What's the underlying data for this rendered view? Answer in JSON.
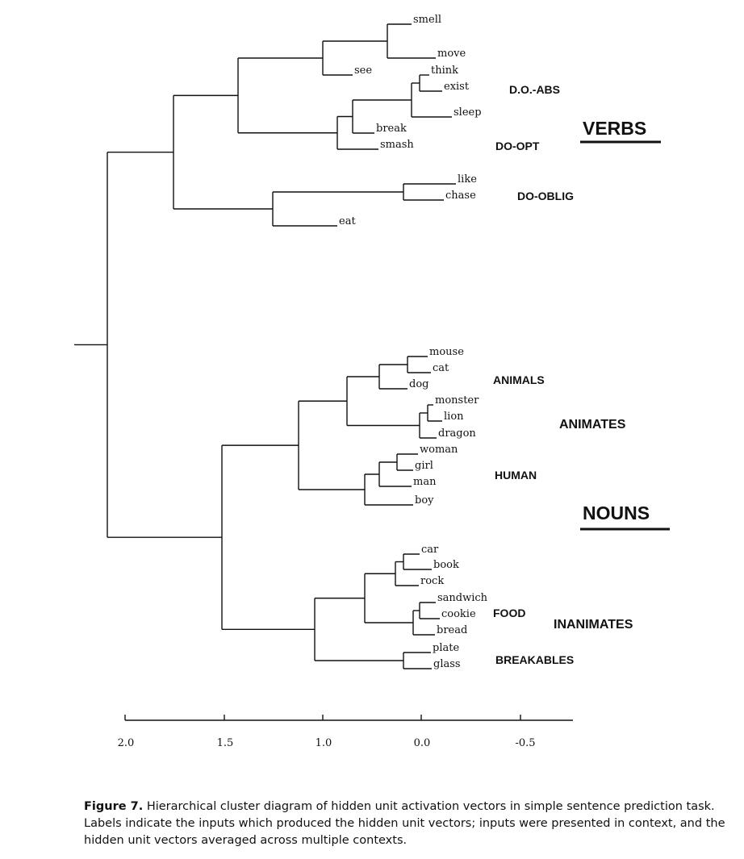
{
  "figure": {
    "leaves": [
      "smell",
      "move",
      "see",
      "think",
      "exist",
      "sleep",
      "break",
      "smash",
      "like",
      "chase",
      "eat",
      "mouse",
      "cat",
      "dog",
      "monster",
      "lion",
      "dragon",
      "woman",
      "girl",
      "man",
      "boy",
      "car",
      "book",
      "rock",
      "sandwich",
      "cookie",
      "bread",
      "plate",
      "glass"
    ],
    "group_labels": [
      "D.O.-ABS",
      "DO-OPT",
      "DO-OBLIG",
      "ANIMALS",
      "ANIMATES",
      "HUMAN",
      "FOOD",
      "INANIMATES",
      "BREAKABLES"
    ],
    "section_labels": [
      "VERBS",
      "NOUNS"
    ],
    "axis": {
      "tick_labels": [
        "2.0",
        "1.5",
        "1.0",
        "0.0",
        "-0.5"
      ]
    }
  },
  "caption": {
    "lead": "Figure 7.",
    "text": "Hierarchical cluster diagram of hidden unit activation vectors in simple sentence prediction task. Labels indicate the inputs which produced the hidden unit vectors; inputs were presented in context, and the hidden unit vectors averaged across multiple contexts."
  }
}
